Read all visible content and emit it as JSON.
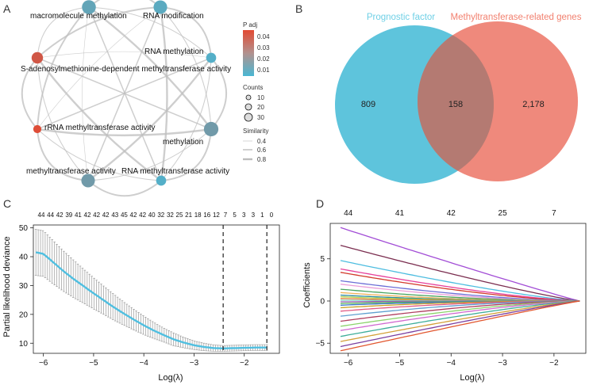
{
  "colors": {
    "padj_low": "#49b7d3",
    "padj_high": "#e24a33",
    "edge": "#bdbdbd",
    "venn_left": "#5ec4dc",
    "venn_right": "#ec7465",
    "venn_left_label": "#6fd0e6",
    "venn_right_label": "#f2806f",
    "cv_line": "#4fbfe0",
    "cv_error": "#9a9a9a"
  },
  "chart_data": [
    {
      "panel": "A",
      "type": "network",
      "nodes": [
        {
          "label": "macromolecule methylation",
          "padj": 0.012,
          "counts": 30
        },
        {
          "label": "RNA modification",
          "padj": 0.01,
          "counts": 28
        },
        {
          "label": "RNA methylation",
          "padj": 0.008,
          "counts": 10
        },
        {
          "label": "methylation",
          "padj": 0.016,
          "counts": 34
        },
        {
          "label": "RNA methyltransferase activity",
          "padj": 0.008,
          "counts": 10
        },
        {
          "label": "methyltransferase activity",
          "padj": 0.016,
          "counts": 28
        },
        {
          "label": "rRNA methyltransferase activity",
          "padj": 0.046,
          "counts": 4
        },
        {
          "label": "S-adenosylmethionine-dependent methyltransferase activity",
          "padj": 0.042,
          "counts": 16
        }
      ],
      "legend": {
        "padj_title": "P adj",
        "padj_ticks": [
          "0.04",
          "0.03",
          "0.02",
          "0.01"
        ],
        "counts_title": "Counts",
        "counts_values": [
          10,
          20,
          30
        ],
        "similarity_title": "Similarity",
        "similarity_values": [
          0.4,
          0.6,
          0.8
        ]
      }
    },
    {
      "panel": "B",
      "type": "venn",
      "sets": [
        "Prognostic factor",
        "Methyltransferase-related genes"
      ],
      "left_only": "809",
      "overlap": "158",
      "right_only": "2,178"
    },
    {
      "panel": "C",
      "type": "line",
      "xlabel": "Log(λ)",
      "ylabel": "Partial likelihood deviance",
      "xlim": [
        -6.2,
        -1.3
      ],
      "ylim": [
        6.5,
        51
      ],
      "xticks": [
        -6,
        -5,
        -4,
        -3,
        -2
      ],
      "yticks": [
        10,
        20,
        30,
        40,
        50
      ],
      "top_counts": [
        "44",
        "44",
        "42",
        "39",
        "41",
        "42",
        "42",
        "42",
        "43",
        "45",
        "42",
        "42",
        "40",
        "32",
        "32",
        "25",
        "21",
        "18",
        "16",
        "12",
        "7",
        "5",
        "3",
        "3",
        "1",
        "0"
      ],
      "vlines": [
        -2.42,
        -1.55
      ],
      "curve_x": [
        -6.15,
        -6.0,
        -5.8,
        -5.6,
        -5.4,
        -5.2,
        -5.0,
        -4.8,
        -4.6,
        -4.4,
        -4.2,
        -4.0,
        -3.8,
        -3.6,
        -3.4,
        -3.2,
        -3.0,
        -2.8,
        -2.6,
        -2.42,
        -2.2,
        -2.0,
        -1.8,
        -1.55
      ],
      "curve_y": [
        41.5,
        41.0,
        38.0,
        35.0,
        32.3,
        29.8,
        27.3,
        24.9,
        22.5,
        20.3,
        18.2,
        16.2,
        14.4,
        12.8,
        11.3,
        10.2,
        9.3,
        8.7,
        8.3,
        8.2,
        8.3,
        8.4,
        8.5,
        8.5
      ],
      "error_top": [
        49.5,
        49.0,
        45.5,
        42.0,
        38.8,
        35.7,
        32.7,
        29.8,
        27.0,
        24.3,
        21.8,
        19.4,
        17.2,
        15.2,
        13.5,
        12.0,
        10.8,
        10.0,
        9.4,
        9.2,
        9.3,
        9.4,
        9.5,
        9.5
      ],
      "error_bottom": [
        33.5,
        33.2,
        30.5,
        28.0,
        25.8,
        23.9,
        21.9,
        20.0,
        18.0,
        16.3,
        14.6,
        13.0,
        11.6,
        10.4,
        9.1,
        8.4,
        7.8,
        7.4,
        7.2,
        7.2,
        7.3,
        7.4,
        7.5,
        7.5
      ]
    },
    {
      "panel": "D",
      "type": "line",
      "xlabel": "Log(λ)",
      "ylabel": "Coefficients",
      "xlim": [
        -6.35,
        -1.35
      ],
      "ylim": [
        -6.2,
        9.2
      ],
      "xticks": [
        -6,
        -5,
        -4,
        -3,
        -2
      ],
      "yticks": [
        -5,
        0,
        5
      ],
      "top_counts": [
        "44",
        "41",
        "42",
        "25",
        "7"
      ],
      "top_positions": [
        -6,
        -5,
        -4,
        -3,
        -2
      ],
      "x_start": -6.15,
      "x_end": -1.5,
      "series": [
        {
          "start": 8.7,
          "shrink": 1.05,
          "color": "#a24dd6"
        },
        {
          "start": 6.6,
          "shrink": 1.15,
          "color": "#7a2d4f"
        },
        {
          "start": 4.8,
          "shrink": 1.25,
          "color": "#4dbde0"
        },
        {
          "start": 3.8,
          "shrink": 1.35,
          "color": "#e6409a"
        },
        {
          "start": 3.4,
          "shrink": 1.45,
          "color": "#d23a2a"
        },
        {
          "start": 2.4,
          "shrink": 1.55,
          "color": "#6c6fd6"
        },
        {
          "start": 2.0,
          "shrink": 1.7,
          "color": "#eb9fd8"
        },
        {
          "start": 1.4,
          "shrink": 1.8,
          "color": "#49a45f"
        },
        {
          "start": 1.0,
          "shrink": 2.0,
          "color": "#f0b35a"
        },
        {
          "start": 0.7,
          "shrink": 2.1,
          "color": "#2b8a9e"
        },
        {
          "start": 0.5,
          "shrink": 2.2,
          "color": "#b5d14b"
        },
        {
          "start": 0.3,
          "shrink": 2.3,
          "color": "#e07b39"
        },
        {
          "start": 0.1,
          "shrink": 2.4,
          "color": "#7fd0c0"
        },
        {
          "start": -0.1,
          "shrink": 2.4,
          "color": "#9b59b6"
        },
        {
          "start": -0.3,
          "shrink": 2.3,
          "color": "#5db85c"
        },
        {
          "start": -0.5,
          "shrink": 2.2,
          "color": "#3a78c9"
        },
        {
          "start": -0.8,
          "shrink": 2.1,
          "color": "#c9a227"
        },
        {
          "start": -1.2,
          "shrink": 1.9,
          "color": "#e05a84"
        },
        {
          "start": -1.8,
          "shrink": 1.8,
          "color": "#60a0d0"
        },
        {
          "start": -2.4,
          "shrink": 1.6,
          "color": "#b04060"
        },
        {
          "start": -3.0,
          "shrink": 1.45,
          "color": "#8bd36b"
        },
        {
          "start": -3.5,
          "shrink": 1.35,
          "color": "#d06ad0"
        },
        {
          "start": -4.2,
          "shrink": 1.25,
          "color": "#3fae9a"
        },
        {
          "start": -4.8,
          "shrink": 1.15,
          "color": "#d4a03a"
        },
        {
          "start": -5.4,
          "shrink": 1.1,
          "color": "#7b3fa0"
        },
        {
          "start": -5.9,
          "shrink": 1.05,
          "color": "#e2572f"
        }
      ]
    }
  ]
}
